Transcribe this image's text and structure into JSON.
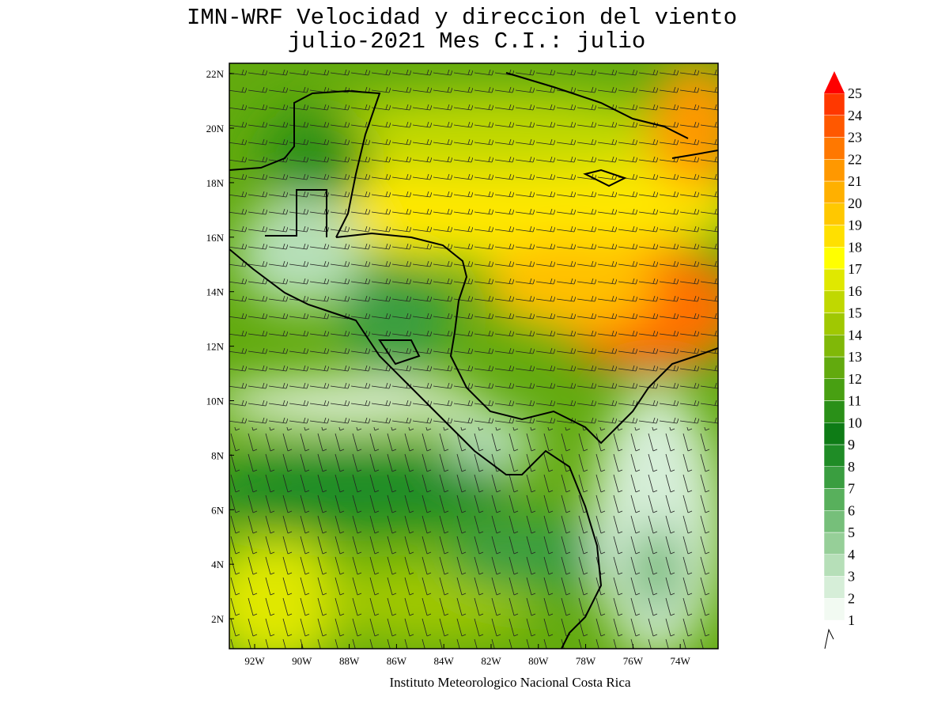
{
  "header": {
    "title": "IMN-WRF Velocidad y direccion del viento",
    "subtitle": "julio-2021 Mes C.I.: julio"
  },
  "map": {
    "lonlim": [
      -93.07,
      -72.4
    ],
    "latlim": [
      0.9,
      22.38
    ],
    "lon_ticks": [
      {
        "value": -92,
        "label": "92W"
      },
      {
        "value": -90,
        "label": "90W"
      },
      {
        "value": -88,
        "label": "88W"
      },
      {
        "value": -86,
        "label": "86W"
      },
      {
        "value": -84,
        "label": "84W"
      },
      {
        "value": -82,
        "label": "82W"
      },
      {
        "value": -80,
        "label": "80W"
      },
      {
        "value": -78,
        "label": "78W"
      },
      {
        "value": -76,
        "label": "76W"
      },
      {
        "value": -74,
        "label": "74W"
      }
    ],
    "lat_ticks": [
      {
        "value": 2,
        "label": "2N"
      },
      {
        "value": 4,
        "label": "4N"
      },
      {
        "value": 6,
        "label": "6N"
      },
      {
        "value": 8,
        "label": "8N"
      },
      {
        "value": 10,
        "label": "10N"
      },
      {
        "value": 12,
        "label": "12N"
      },
      {
        "value": 14,
        "label": "14N"
      },
      {
        "value": 16,
        "label": "16N"
      },
      {
        "value": 18,
        "label": "18N"
      },
      {
        "value": 20,
        "label": "20N"
      },
      {
        "value": 22,
        "label": "22N"
      }
    ]
  },
  "colorbar": {
    "levels": [
      1,
      2,
      3,
      4,
      5,
      6,
      7,
      8,
      9,
      10,
      11,
      12,
      13,
      14,
      15,
      16,
      17,
      18,
      19,
      20,
      21,
      22,
      23,
      24,
      25
    ],
    "colors": [
      "#f2faf2",
      "#d6eed8",
      "#b6dfb8",
      "#96cf98",
      "#76bf7a",
      "#58b05c",
      "#3a9e40",
      "#1f8c26",
      "#0e7c16",
      "#2a9018",
      "#48a012",
      "#62aa0e",
      "#80b808",
      "#a0c802",
      "#c0d800",
      "#e0e800",
      "#ffff00",
      "#ffe000",
      "#ffc800",
      "#ffb000",
      "#ff9800",
      "#ff7800",
      "#ff5800",
      "#ff3800",
      "#ff0000"
    ]
  },
  "footer": "Instituto Meteorologico Nacional Costa Rica"
}
